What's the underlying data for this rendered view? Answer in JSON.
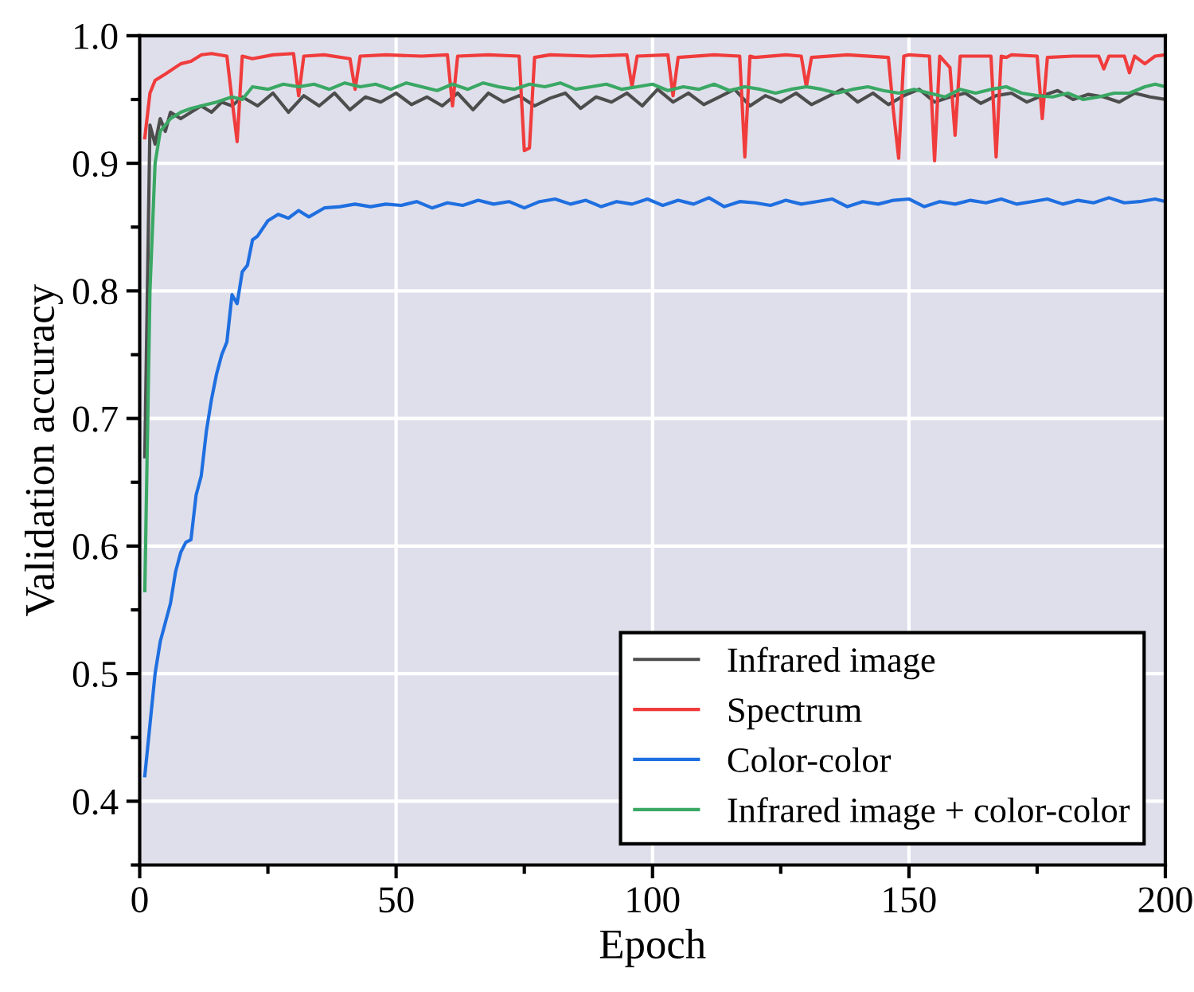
{
  "chart_data": {
    "type": "line",
    "xlabel": "Epoch",
    "ylabel": "Validation accuracy",
    "xlim": [
      0,
      200
    ],
    "ylim": [
      0.35,
      1.0
    ],
    "xticks": [
      0,
      50,
      100,
      150,
      200
    ],
    "yticks": [
      0.4,
      0.5,
      0.6,
      0.7,
      0.8,
      0.9,
      {
        "value": 1,
        "label": "1.0"
      }
    ],
    "grid": true,
    "legend": "bottom right",
    "line_style": "solid",
    "marker": "none",
    "series": [
      {
        "name": "Infrared image",
        "color": "#4d4d4d",
        "x": [
          1,
          2,
          3,
          4,
          5,
          6,
          8,
          10,
          12,
          14,
          16,
          18,
          20,
          23,
          26,
          29,
          32,
          35,
          38,
          41,
          44,
          47,
          50,
          53,
          56,
          59,
          62,
          65,
          68,
          71,
          74,
          77,
          80,
          83,
          86,
          89,
          92,
          95,
          98,
          101,
          104,
          107,
          110,
          113,
          116,
          119,
          122,
          125,
          128,
          131,
          134,
          137,
          140,
          143,
          146,
          149,
          152,
          155,
          158,
          161,
          164,
          167,
          170,
          173,
          176,
          179,
          182,
          185,
          188,
          191,
          194,
          197,
          200
        ],
        "values": [
          0.67,
          0.93,
          0.915,
          0.935,
          0.925,
          0.94,
          0.935,
          0.94,
          0.945,
          0.94,
          0.948,
          0.945,
          0.952,
          0.945,
          0.955,
          0.94,
          0.953,
          0.945,
          0.955,
          0.942,
          0.952,
          0.948,
          0.955,
          0.946,
          0.952,
          0.945,
          0.955,
          0.942,
          0.955,
          0.948,
          0.953,
          0.945,
          0.951,
          0.955,
          0.943,
          0.952,
          0.948,
          0.955,
          0.945,
          0.958,
          0.948,
          0.955,
          0.946,
          0.952,
          0.958,
          0.945,
          0.953,
          0.948,
          0.955,
          0.946,
          0.952,
          0.958,
          0.948,
          0.955,
          0.946,
          0.953,
          0.958,
          0.948,
          0.952,
          0.955,
          0.947,
          0.953,
          0.955,
          0.948,
          0.953,
          0.957,
          0.95,
          0.954,
          0.952,
          0.948,
          0.955,
          0.952,
          0.95
        ]
      },
      {
        "name": "Spectrum",
        "color": "#f03c3c",
        "x": [
          1,
          2,
          3,
          5,
          8,
          10,
          12,
          14,
          17,
          18,
          19,
          20,
          22,
          26,
          30,
          31,
          32,
          36,
          41,
          42,
          43,
          48,
          55,
          60,
          61,
          62,
          68,
          74,
          75,
          76,
          77,
          80,
          88,
          95,
          96,
          97,
          103,
          104,
          105,
          112,
          117,
          118,
          119,
          120,
          126,
          129,
          130,
          131,
          138,
          146,
          147,
          148,
          149,
          150,
          154,
          155,
          156,
          158,
          159,
          160,
          166,
          167,
          168,
          169,
          170,
          175,
          176,
          177,
          182,
          187,
          188,
          189,
          192,
          193,
          194,
          196,
          198,
          200
        ],
        "values": [
          0.92,
          0.955,
          0.965,
          0.97,
          0.978,
          0.98,
          0.985,
          0.986,
          0.984,
          0.95,
          0.917,
          0.984,
          0.982,
          0.985,
          0.986,
          0.953,
          0.984,
          0.985,
          0.982,
          0.958,
          0.984,
          0.985,
          0.984,
          0.985,
          0.945,
          0.984,
          0.985,
          0.984,
          0.91,
          0.912,
          0.983,
          0.985,
          0.984,
          0.985,
          0.96,
          0.984,
          0.985,
          0.953,
          0.983,
          0.985,
          0.984,
          0.905,
          0.984,
          0.983,
          0.985,
          0.984,
          0.96,
          0.983,
          0.985,
          0.983,
          0.94,
          0.904,
          0.984,
          0.985,
          0.984,
          0.902,
          0.984,
          0.975,
          0.922,
          0.984,
          0.984,
          0.905,
          0.984,
          0.983,
          0.985,
          0.984,
          0.935,
          0.983,
          0.984,
          0.984,
          0.974,
          0.984,
          0.984,
          0.971,
          0.984,
          0.978,
          0.984,
          0.985
        ]
      },
      {
        "name": "Color-color",
        "color": "#1f6fe0",
        "x": [
          1,
          2,
          3,
          4,
          5,
          6,
          7,
          8,
          9,
          10,
          11,
          12,
          13,
          14,
          15,
          16,
          17,
          18,
          19,
          20,
          21,
          22,
          23,
          25,
          27,
          29,
          31,
          33,
          36,
          39,
          42,
          45,
          48,
          51,
          54,
          57,
          60,
          63,
          66,
          69,
          72,
          75,
          78,
          81,
          84,
          87,
          90,
          93,
          96,
          99,
          102,
          105,
          108,
          111,
          114,
          117,
          120,
          123,
          126,
          129,
          132,
          135,
          138,
          141,
          144,
          147,
          150,
          153,
          156,
          159,
          162,
          165,
          168,
          171,
          174,
          177,
          180,
          183,
          186,
          189,
          192,
          195,
          198,
          200
        ],
        "values": [
          0.42,
          0.46,
          0.5,
          0.525,
          0.54,
          0.555,
          0.58,
          0.595,
          0.603,
          0.605,
          0.64,
          0.655,
          0.69,
          0.715,
          0.735,
          0.75,
          0.76,
          0.797,
          0.79,
          0.815,
          0.82,
          0.84,
          0.843,
          0.855,
          0.86,
          0.857,
          0.863,
          0.858,
          0.865,
          0.866,
          0.868,
          0.866,
          0.868,
          0.867,
          0.87,
          0.865,
          0.869,
          0.867,
          0.871,
          0.868,
          0.87,
          0.865,
          0.87,
          0.872,
          0.868,
          0.871,
          0.866,
          0.87,
          0.868,
          0.872,
          0.867,
          0.871,
          0.868,
          0.873,
          0.866,
          0.87,
          0.869,
          0.867,
          0.871,
          0.868,
          0.87,
          0.872,
          0.866,
          0.87,
          0.868,
          0.871,
          0.872,
          0.866,
          0.87,
          0.868,
          0.871,
          0.869,
          0.872,
          0.868,
          0.87,
          0.872,
          0.868,
          0.871,
          0.869,
          0.873,
          0.869,
          0.87,
          0.872,
          0.87
        ]
      },
      {
        "name": "Infrared image + color-color",
        "color": "#3aa864",
        "x": [
          1,
          2,
          3,
          4,
          6,
          8,
          10,
          12,
          15,
          18,
          20,
          22,
          25,
          28,
          31,
          34,
          37,
          40,
          43,
          46,
          49,
          52,
          55,
          58,
          61,
          64,
          67,
          70,
          73,
          76,
          79,
          82,
          85,
          88,
          91,
          94,
          97,
          100,
          103,
          106,
          109,
          112,
          115,
          118,
          121,
          124,
          127,
          130,
          133,
          136,
          139,
          142,
          145,
          148,
          151,
          154,
          157,
          160,
          163,
          166,
          169,
          172,
          175,
          178,
          181,
          184,
          187,
          190,
          193,
          196,
          198,
          200
        ],
        "values": [
          0.565,
          0.8,
          0.9,
          0.925,
          0.935,
          0.94,
          0.943,
          0.945,
          0.948,
          0.952,
          0.95,
          0.96,
          0.958,
          0.962,
          0.96,
          0.962,
          0.958,
          0.963,
          0.96,
          0.962,
          0.958,
          0.963,
          0.96,
          0.957,
          0.962,
          0.958,
          0.963,
          0.96,
          0.958,
          0.962,
          0.96,
          0.963,
          0.958,
          0.96,
          0.962,
          0.958,
          0.96,
          0.962,
          0.957,
          0.96,
          0.958,
          0.962,
          0.957,
          0.96,
          0.958,
          0.955,
          0.958,
          0.96,
          0.958,
          0.955,
          0.958,
          0.96,
          0.957,
          0.955,
          0.958,
          0.955,
          0.952,
          0.958,
          0.955,
          0.958,
          0.96,
          0.955,
          0.953,
          0.952,
          0.955,
          0.95,
          0.952,
          0.955,
          0.955,
          0.96,
          0.962,
          0.96
        ]
      }
    ]
  }
}
